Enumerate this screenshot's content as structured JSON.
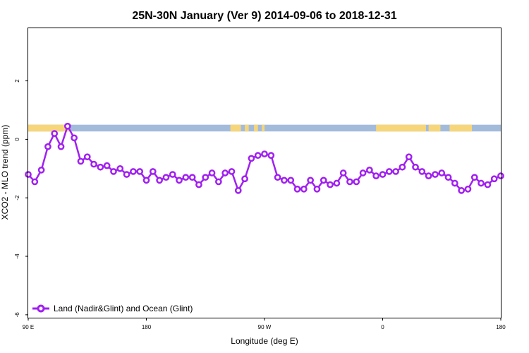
{
  "chart_data": {
    "type": "line",
    "title": "25N-30N January (Ver 9)   2014-09-06 to 2018-12-31",
    "xlabel": "Longitude (deg E)",
    "ylabel": "XCO2 - MLO trend (ppm)",
    "xlim": [
      90,
      450
    ],
    "ylim": [
      -6.1,
      3.8
    ],
    "x_ticks": [
      {
        "value": 90,
        "label": "90 E"
      },
      {
        "value": 180,
        "label": "180"
      },
      {
        "value": 270,
        "label": "90 W"
      },
      {
        "value": 360,
        "label": "0"
      },
      {
        "value": 450,
        "label": "180"
      }
    ],
    "y_ticks": [
      {
        "value": -6,
        "label": "-6"
      },
      {
        "value": -4,
        "label": "-4"
      },
      {
        "value": -2,
        "label": "-2"
      },
      {
        "value": 0,
        "label": "0"
      },
      {
        "value": 2,
        "label": "2"
      }
    ],
    "grid": false,
    "legend_position": "bottom-left",
    "surface_strip": {
      "y_range": [
        0.27,
        0.5
      ],
      "ocean_color": "#a3bbdb",
      "land_color": "#f7d67a",
      "land_segments": [
        [
          90,
          122
        ],
        [
          244,
          252
        ],
        [
          255,
          258
        ],
        [
          262,
          265
        ],
        [
          268,
          270
        ],
        [
          355,
          393
        ],
        [
          395,
          404
        ],
        [
          411,
          428
        ]
      ]
    },
    "series": [
      {
        "name": "Land (Nadir&Glint) and Ocean (Glint)",
        "color": "#a020f0",
        "x": [
          90,
          95,
          100,
          105,
          110,
          115,
          120,
          125,
          130,
          135,
          140,
          145,
          150,
          155,
          160,
          165,
          170,
          175,
          180,
          185,
          190,
          195,
          200,
          205,
          210,
          215,
          220,
          225,
          230,
          235,
          240,
          245,
          250,
          255,
          260,
          265,
          270,
          275,
          280,
          285,
          290,
          295,
          300,
          305,
          310,
          315,
          320,
          325,
          330,
          335,
          340,
          345,
          350,
          355,
          360,
          365,
          370,
          375,
          380,
          385,
          390,
          395,
          400,
          405,
          410,
          415,
          420,
          425,
          430,
          435,
          440,
          445,
          450
        ],
        "y": [
          -1.2,
          -1.45,
          -1.05,
          -0.25,
          0.2,
          -0.25,
          0.45,
          0.05,
          -0.75,
          -0.6,
          -0.85,
          -0.95,
          -0.9,
          -1.1,
          -1.0,
          -1.2,
          -1.1,
          -1.1,
          -1.4,
          -1.1,
          -1.4,
          -1.3,
          -1.2,
          -1.4,
          -1.3,
          -1.3,
          -1.55,
          -1.3,
          -1.15,
          -1.45,
          -1.15,
          -1.1,
          -1.75,
          -1.35,
          -0.65,
          -0.55,
          -0.5,
          -0.55,
          -1.3,
          -1.4,
          -1.4,
          -1.7,
          -1.7,
          -1.4,
          -1.7,
          -1.4,
          -1.55,
          -1.5,
          -1.15,
          -1.45,
          -1.45,
          -1.15,
          -1.05,
          -1.25,
          -1.2,
          -1.1,
          -1.1,
          -0.95,
          -0.6,
          -0.95,
          -1.1,
          -1.25,
          -1.2,
          -1.15,
          -1.3,
          -1.5,
          -1.75,
          -1.7,
          -1.3,
          -1.5,
          -1.55,
          -1.35,
          -1.25
        ]
      }
    ]
  }
}
